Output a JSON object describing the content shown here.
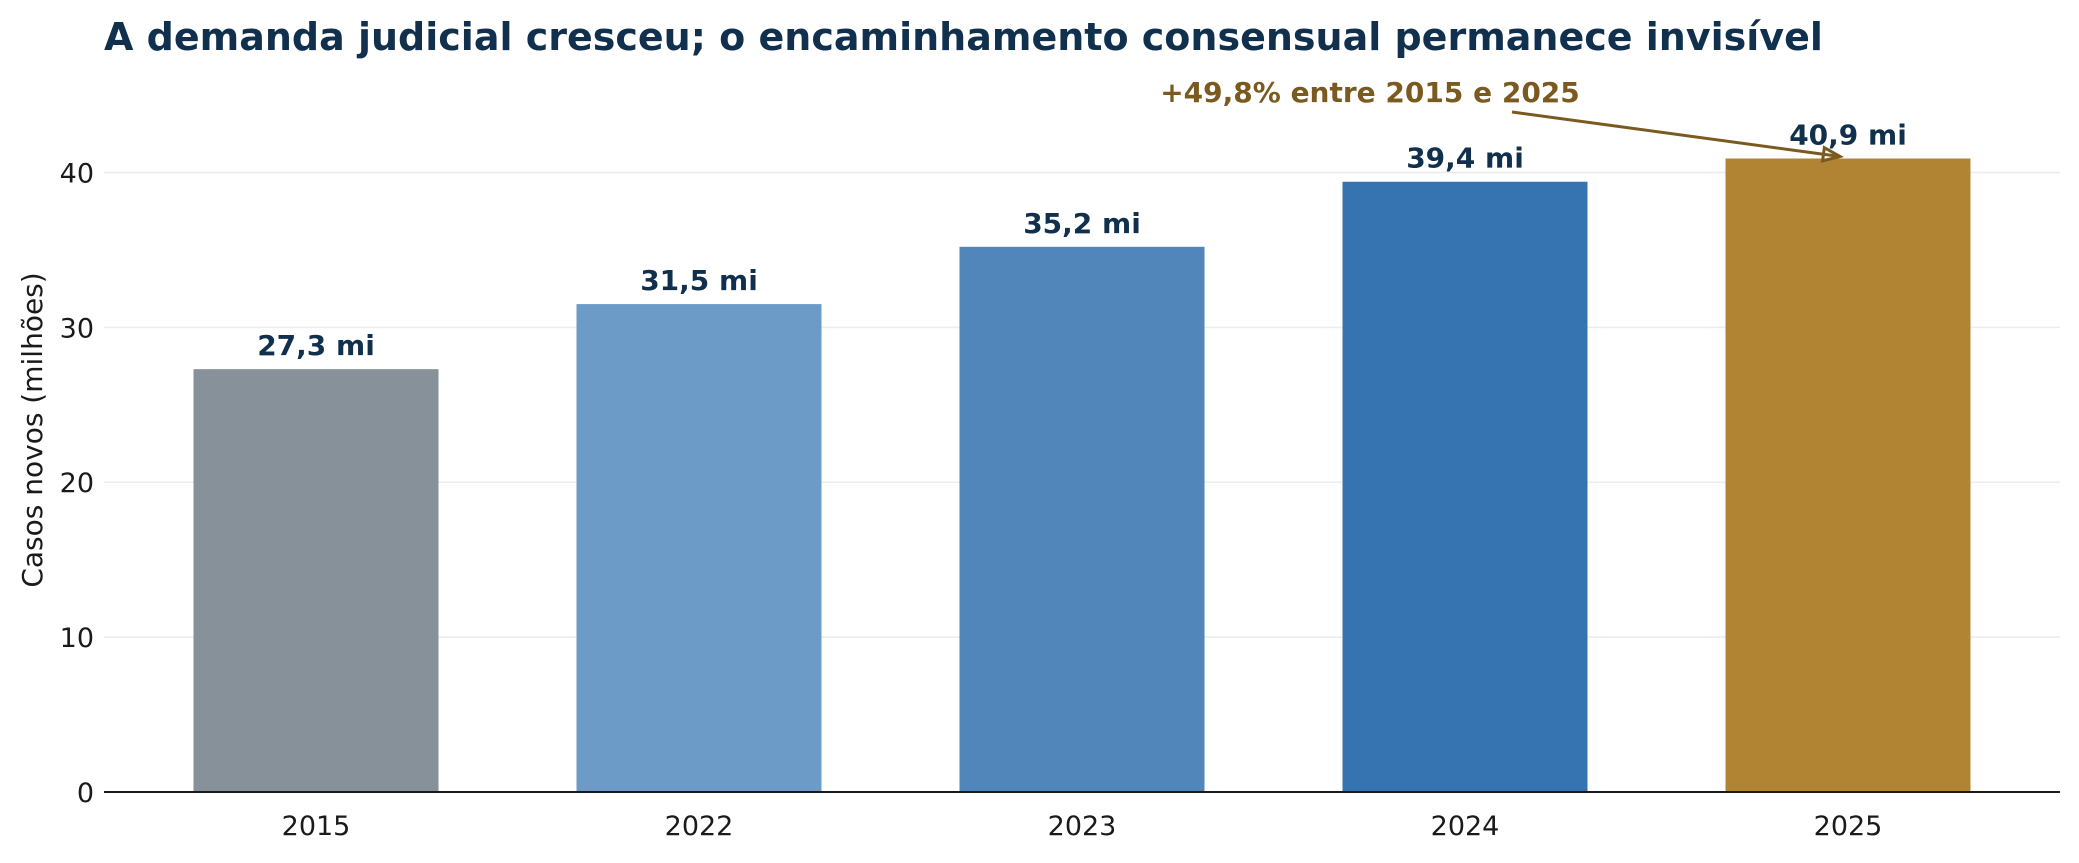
{
  "chart_data": {
    "type": "bar",
    "title": "A demanda judicial cresceu; o encaminhamento consensual permanece invisível",
    "xlabel": "",
    "ylabel": "Casos novos (milhões)",
    "categories": [
      "2015",
      "2022",
      "2023",
      "2024",
      "2025"
    ],
    "values": [
      27.3,
      31.5,
      35.2,
      39.4,
      40.9
    ],
    "data_labels": [
      "27,3 mi",
      "31,5 mi",
      "35,2 mi",
      "39,4 mi",
      "40,9 mi"
    ],
    "bar_colors": [
      "#87919a",
      "#6c9bc7",
      "#5086ba",
      "#3674b1",
      "#b08432"
    ],
    "ylim": [
      0,
      45
    ],
    "yticks": [
      0,
      10,
      20,
      30,
      40
    ],
    "ytick_labels": [
      "0",
      "10",
      "20",
      "30",
      "40"
    ],
    "grid": "horizontal",
    "annotation": {
      "text": "+49,8% entre 2015 e 2025",
      "target_category": "2025",
      "color": "#7a5a1f"
    },
    "colors": {
      "title": "#11304d",
      "data_label": "#11304d",
      "grid": "#ececec",
      "axis": "#1a1a1a"
    }
  }
}
